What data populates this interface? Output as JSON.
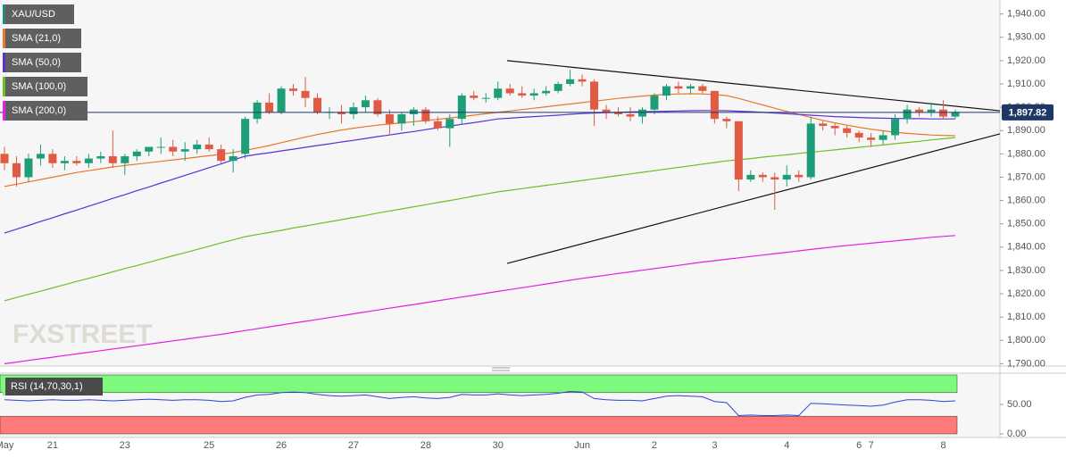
{
  "chart_data": [
    {
      "type": "candlestick",
      "watermark": "FXSTREET",
      "categories": [
        "May",
        null,
        null,
        null,
        "21",
        null,
        null,
        null,
        null,
        null,
        "23",
        null,
        null,
        null,
        null,
        null,
        null,
        "25",
        null,
        null,
        null,
        null,
        null,
        "26",
        null,
        null,
        null,
        null,
        null,
        "27",
        null,
        null,
        null,
        null,
        null,
        "28",
        null,
        null,
        null,
        null,
        null,
        "30",
        null,
        null,
        null,
        null,
        null,
        null,
        "Jun",
        null,
        null,
        null,
        null,
        null,
        "2",
        null,
        null,
        null,
        null,
        "3",
        null,
        null,
        null,
        null,
        null,
        "4",
        null,
        null,
        null,
        null,
        null,
        "6",
        "7",
        null,
        null,
        null,
        null,
        null,
        "8",
        null
      ],
      "series": [
        {
          "name": "XAU/USD",
          "color": "#1e8c7e",
          "up_color": "#1e9e78",
          "down_color": "#e05a44",
          "open": [
            1880,
            1876,
            1870,
            1878,
            1880,
            1876,
            1877,
            1876,
            1878,
            1879,
            1876,
            1879,
            1881,
            1883,
            1883,
            1881,
            1882,
            1884,
            1882,
            1877,
            1880,
            1895,
            1902,
            1898,
            1908,
            1907,
            1904,
            1898,
            1898,
            1897,
            1900,
            1903,
            1897,
            1893,
            1897,
            1899,
            1894,
            1891,
            1895,
            1905,
            1904,
            1904,
            1908,
            1906,
            1905,
            1906,
            1907,
            1910,
            1912,
            1911,
            1899,
            1898,
            1897,
            1896,
            1899,
            1905,
            1909,
            1908,
            1909,
            1907,
            1895,
            1894,
            1869,
            1871,
            1870,
            1869,
            1871,
            1870,
            1893,
            1892,
            1891,
            1889,
            1887,
            1886,
            1888,
            1895,
            1899,
            1898,
            1899,
            1896
          ],
          "high": [
            1883,
            1879,
            1880,
            1884,
            1882,
            1879,
            1879,
            1880,
            1881,
            1890,
            1880,
            1882,
            1883,
            1887,
            1886,
            1885,
            1886,
            1887,
            1884,
            1882,
            1896,
            1903,
            1906,
            1909,
            1910,
            1913,
            1906,
            1900,
            1901,
            1902,
            1905,
            1904,
            1899,
            1898,
            1900,
            1900,
            1896,
            1897,
            1906,
            1907,
            1906,
            1911,
            1910,
            1909,
            1908,
            1909,
            1911,
            1916,
            1914,
            1912,
            1901,
            1900,
            1900,
            1900,
            1906,
            1910,
            1911,
            1910,
            1910,
            1907,
            1896,
            1894,
            1873,
            1872,
            1872,
            1875,
            1873,
            1896,
            1894,
            1893,
            1892,
            1890,
            1889,
            1890,
            1897,
            1901,
            1900,
            1902,
            1903,
            1899
          ],
          "low": [
            1873,
            1866,
            1868,
            1875,
            1874,
            1873,
            1875,
            1874,
            1876,
            1874,
            1871,
            1877,
            1879,
            1880,
            1879,
            1877,
            1880,
            1881,
            1876,
            1872,
            1878,
            1893,
            1897,
            1897,
            1905,
            1900,
            1897,
            1895,
            1893,
            1895,
            1898,
            1896,
            1888,
            1890,
            1892,
            1893,
            1890,
            1883,
            1893,
            1903,
            1902,
            1903,
            1905,
            1904,
            1903,
            1905,
            1906,
            1909,
            1909,
            1892,
            1895,
            1896,
            1894,
            1893,
            1897,
            1903,
            1906,
            1906,
            1906,
            1893,
            1891,
            1864,
            1868,
            1868,
            1856,
            1866,
            1868,
            1869,
            1890,
            1888,
            1887,
            1885,
            1883,
            1884,
            1886,
            1893,
            1896,
            1896,
            1895,
            1895
          ],
          "close": [
            1876,
            1870,
            1878,
            1880,
            1876,
            1877,
            1876,
            1878,
            1879,
            1876,
            1879,
            1881,
            1883,
            1883,
            1881,
            1882,
            1884,
            1882,
            1877,
            1879,
            1895,
            1902,
            1898,
            1908,
            1907,
            1904,
            1898,
            1898,
            1897,
            1900,
            1903,
            1897,
            1893,
            1897,
            1899,
            1894,
            1891,
            1895,
            1905,
            1904,
            1904,
            1908,
            1906,
            1905,
            1906,
            1907,
            1910,
            1912,
            1911,
            1899,
            1898,
            1897,
            1896,
            1899,
            1905,
            1909,
            1908,
            1909,
            1907,
            1895,
            1894,
            1869,
            1871,
            1870,
            1869,
            1871,
            1870,
            1893,
            1892,
            1891,
            1889,
            1887,
            1886,
            1888,
            1895,
            1899,
            1898,
            1899,
            1896,
            1898
          ]
        },
        {
          "name": "SMA (21,0)",
          "color": "#e8782a",
          "values": [
            1866,
            1867,
            1868,
            1869,
            1870,
            1871,
            1872,
            1872.8,
            1873.6,
            1874.4,
            1875,
            1875.6,
            1876.2,
            1876.8,
            1877.4,
            1878,
            1878.6,
            1879.2,
            1879.8,
            1880.6,
            1881.5,
            1882.5,
            1883.6,
            1884.8,
            1886,
            1887.2,
            1888.3,
            1889.3,
            1890.2,
            1891,
            1891.7,
            1892.3,
            1892.8,
            1893.3,
            1893.8,
            1894.3,
            1894.8,
            1895.4,
            1896,
            1896.6,
            1897.2,
            1897.8,
            1898.4,
            1899,
            1899.6,
            1900.2,
            1900.8,
            1901.4,
            1902,
            1902.6,
            1903.2,
            1903.8,
            1904.3,
            1904.8,
            1905.2,
            1905.5,
            1905.7,
            1905.8,
            1905.7,
            1905.4,
            1905,
            1903.8,
            1902.4,
            1901,
            1899.6,
            1898.2,
            1896.9,
            1895.6,
            1894.4,
            1893.3,
            1892.3,
            1891.4,
            1890.6,
            1889.9,
            1889.3,
            1888.8,
            1888.4,
            1888.1,
            1887.9,
            1887.8
          ]
        },
        {
          "name": "SMA (50,0)",
          "color": "#5a2fd8",
          "values": [
            1846,
            1847.7,
            1849.3,
            1851,
            1852.6,
            1854.3,
            1855.9,
            1857.6,
            1859.2,
            1860.9,
            1862.5,
            1864.2,
            1865.8,
            1867.5,
            1869.1,
            1870.8,
            1872.4,
            1874.1,
            1875.7,
            1877.4,
            1879,
            1879.8,
            1880.5,
            1881.3,
            1882,
            1882.8,
            1883.6,
            1884.3,
            1885.1,
            1885.8,
            1886.6,
            1887.4,
            1888.1,
            1888.9,
            1889.6,
            1890.4,
            1891.2,
            1891.9,
            1892.7,
            1893.4,
            1894.2,
            1895,
            1895.3,
            1895.7,
            1896,
            1896.3,
            1896.6,
            1897,
            1897.3,
            1897.5,
            1897.7,
            1897.8,
            1898,
            1898.1,
            1898.2,
            1898.3,
            1898.4,
            1898.5,
            1898.6,
            1898.6,
            1898.5,
            1898.3,
            1898.1,
            1897.8,
            1897.5,
            1897.2,
            1896.9,
            1896.6,
            1896.3,
            1896,
            1895.8,
            1895.6,
            1895.4,
            1895.3,
            1895.2,
            1895.1,
            1895.1,
            1895,
            1895,
            1895
          ]
        },
        {
          "name": "SMA (100,0)",
          "color": "#6cc024",
          "values": [
            1817,
            1818.4,
            1819.8,
            1821.1,
            1822.5,
            1823.9,
            1825.3,
            1826.6,
            1828,
            1829.4,
            1830.8,
            1832.1,
            1833.5,
            1834.9,
            1836.3,
            1837.6,
            1839,
            1840.4,
            1841.8,
            1843.1,
            1844.5,
            1845.4,
            1846.3,
            1847.2,
            1848.2,
            1849.1,
            1850,
            1850.9,
            1851.8,
            1852.7,
            1853.6,
            1854.6,
            1855.5,
            1856.4,
            1857.3,
            1858.2,
            1859.1,
            1860,
            1860.9,
            1861.9,
            1862.8,
            1863.7,
            1864.4,
            1865.1,
            1865.8,
            1866.5,
            1867.2,
            1867.9,
            1868.6,
            1869.3,
            1870,
            1870.7,
            1871.4,
            1872.1,
            1872.8,
            1873.5,
            1874.2,
            1874.9,
            1875.6,
            1876.3,
            1877,
            1877.5,
            1878,
            1878.6,
            1879.1,
            1879.6,
            1880.2,
            1880.7,
            1881.2,
            1881.7,
            1882.3,
            1882.8,
            1883.3,
            1883.8,
            1884.4,
            1884.9,
            1885.4,
            1886,
            1886.5,
            1887
          ]
        },
        {
          "name": "SMA (200,0)",
          "color": "#e61ee6",
          "values": [
            1790,
            1790.7,
            1791.4,
            1792.1,
            1792.8,
            1793.5,
            1794.2,
            1794.9,
            1795.6,
            1796.3,
            1797,
            1797.7,
            1798.4,
            1799.1,
            1799.8,
            1800.5,
            1801.2,
            1801.9,
            1802.6,
            1803.4,
            1804.2,
            1805,
            1805.8,
            1806.6,
            1807.4,
            1808.2,
            1809,
            1809.8,
            1810.6,
            1811.4,
            1812.2,
            1813,
            1813.8,
            1814.6,
            1815.4,
            1816.2,
            1817,
            1817.8,
            1818.6,
            1819.4,
            1820.2,
            1821,
            1821.8,
            1822.6,
            1823.4,
            1824.2,
            1825,
            1825.8,
            1826.6,
            1827.3,
            1828,
            1828.7,
            1829.4,
            1830.1,
            1830.8,
            1831.5,
            1832.2,
            1832.9,
            1833.6,
            1834.2,
            1834.8,
            1835.4,
            1836,
            1836.6,
            1837.2,
            1837.8,
            1838.4,
            1839,
            1839.6,
            1840.2,
            1840.7,
            1841.2,
            1841.7,
            1842.2,
            1842.7,
            1843.2,
            1843.7,
            1844.2,
            1844.6,
            1845
          ]
        }
      ],
      "trendlines": [
        {
          "color": "#111111",
          "values": [
            1920,
            1898.5
          ]
        },
        {
          "color": "#111111",
          "values": [
            1833,
            1888.6
          ]
        }
      ],
      "last_price": {
        "value": 1897.82,
        "label": "1,897.82",
        "color": "#1d3766"
      },
      "ylim": [
        1789,
        1946
      ],
      "yticks": [
        {
          "value": 1790,
          "label": "1,790.00"
        },
        {
          "value": 1800,
          "label": "1,800.00"
        },
        {
          "value": 1810,
          "label": "1,810.00"
        },
        {
          "value": 1820,
          "label": "1,820.00"
        },
        {
          "value": 1830,
          "label": "1,830.00"
        },
        {
          "value": 1840,
          "label": "1,840.00"
        },
        {
          "value": 1850,
          "label": "1,850.00"
        },
        {
          "value": 1860,
          "label": "1,860.00"
        },
        {
          "value": 1870,
          "label": "1,870.00"
        },
        {
          "value": 1880,
          "label": "1,880.00"
        },
        {
          "value": 1890,
          "label": "1,890.00"
        },
        {
          "value": 1900,
          "label": "1,900.00"
        },
        {
          "value": 1910,
          "label": "1,910.00"
        },
        {
          "value": 1920,
          "label": "1,920.00"
        },
        {
          "value": 1930,
          "label": "1,930.00"
        },
        {
          "value": 1940,
          "label": "1,940.00"
        }
      ]
    },
    {
      "type": "line",
      "series": [
        {
          "name": "RSI (14,70,30,1)",
          "color": "#2b45d6",
          "values": [
            58,
            57,
            56,
            57,
            58,
            57,
            57,
            58,
            57,
            56,
            57,
            58,
            59,
            58,
            57,
            58,
            58,
            57,
            55,
            56,
            62,
            66,
            67,
            70,
            71,
            70,
            67,
            65,
            64,
            65,
            66,
            63,
            60,
            62,
            63,
            61,
            60,
            62,
            67,
            66,
            66,
            68,
            66,
            65,
            66,
            67,
            69,
            72,
            71,
            60,
            58,
            57,
            57,
            56,
            60,
            64,
            65,
            64,
            63,
            55,
            53,
            31,
            32,
            31,
            31,
            32,
            31,
            52,
            51,
            50,
            49,
            48,
            47,
            49,
            54,
            58,
            58,
            57,
            55,
            56
          ]
        }
      ],
      "bands": [
        {
          "from": 70,
          "to": 100,
          "color": "#7dfa7d"
        },
        {
          "from": 0,
          "to": 30,
          "color": "#ff7b7b"
        }
      ],
      "ylim": [
        0,
        100
      ],
      "yticks": [
        {
          "value": 0,
          "label": "0.00"
        },
        {
          "value": 50,
          "label": "50.00"
        }
      ]
    }
  ]
}
